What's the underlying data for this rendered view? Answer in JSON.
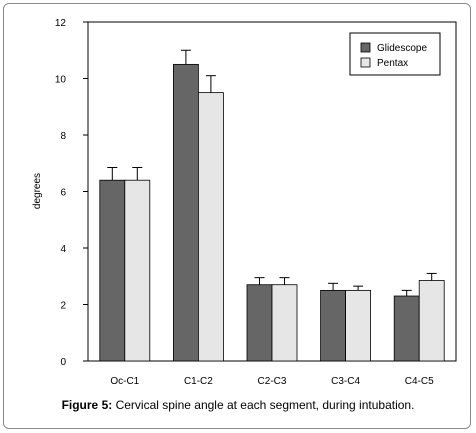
{
  "caption": {
    "label": "Figure 5:",
    "text": " Cervical spine angle at each segment, during intubation."
  },
  "chart_data": {
    "type": "bar",
    "title": "",
    "xlabel": "",
    "ylabel": "degrees",
    "ylim": [
      0,
      12
    ],
    "yticks": [
      0,
      2,
      4,
      6,
      8,
      10,
      12
    ],
    "categories": [
      "Oc-C1",
      "C1-C2",
      "C2-C3",
      "C3-C4",
      "C4-C5"
    ],
    "series": [
      {
        "name": "Glidescope",
        "color": "#666666",
        "values": [
          6.4,
          10.5,
          2.7,
          2.5,
          2.3
        ],
        "errors": [
          0.45,
          0.5,
          0.25,
          0.25,
          0.2
        ]
      },
      {
        "name": "Pentax",
        "color": "#e6e6e6",
        "values": [
          6.4,
          9.5,
          2.7,
          2.5,
          2.85
        ],
        "errors": [
          0.45,
          0.6,
          0.25,
          0.15,
          0.25
        ]
      }
    ],
    "legend_position": "top-right",
    "grid": false,
    "error_bars": "upper"
  }
}
